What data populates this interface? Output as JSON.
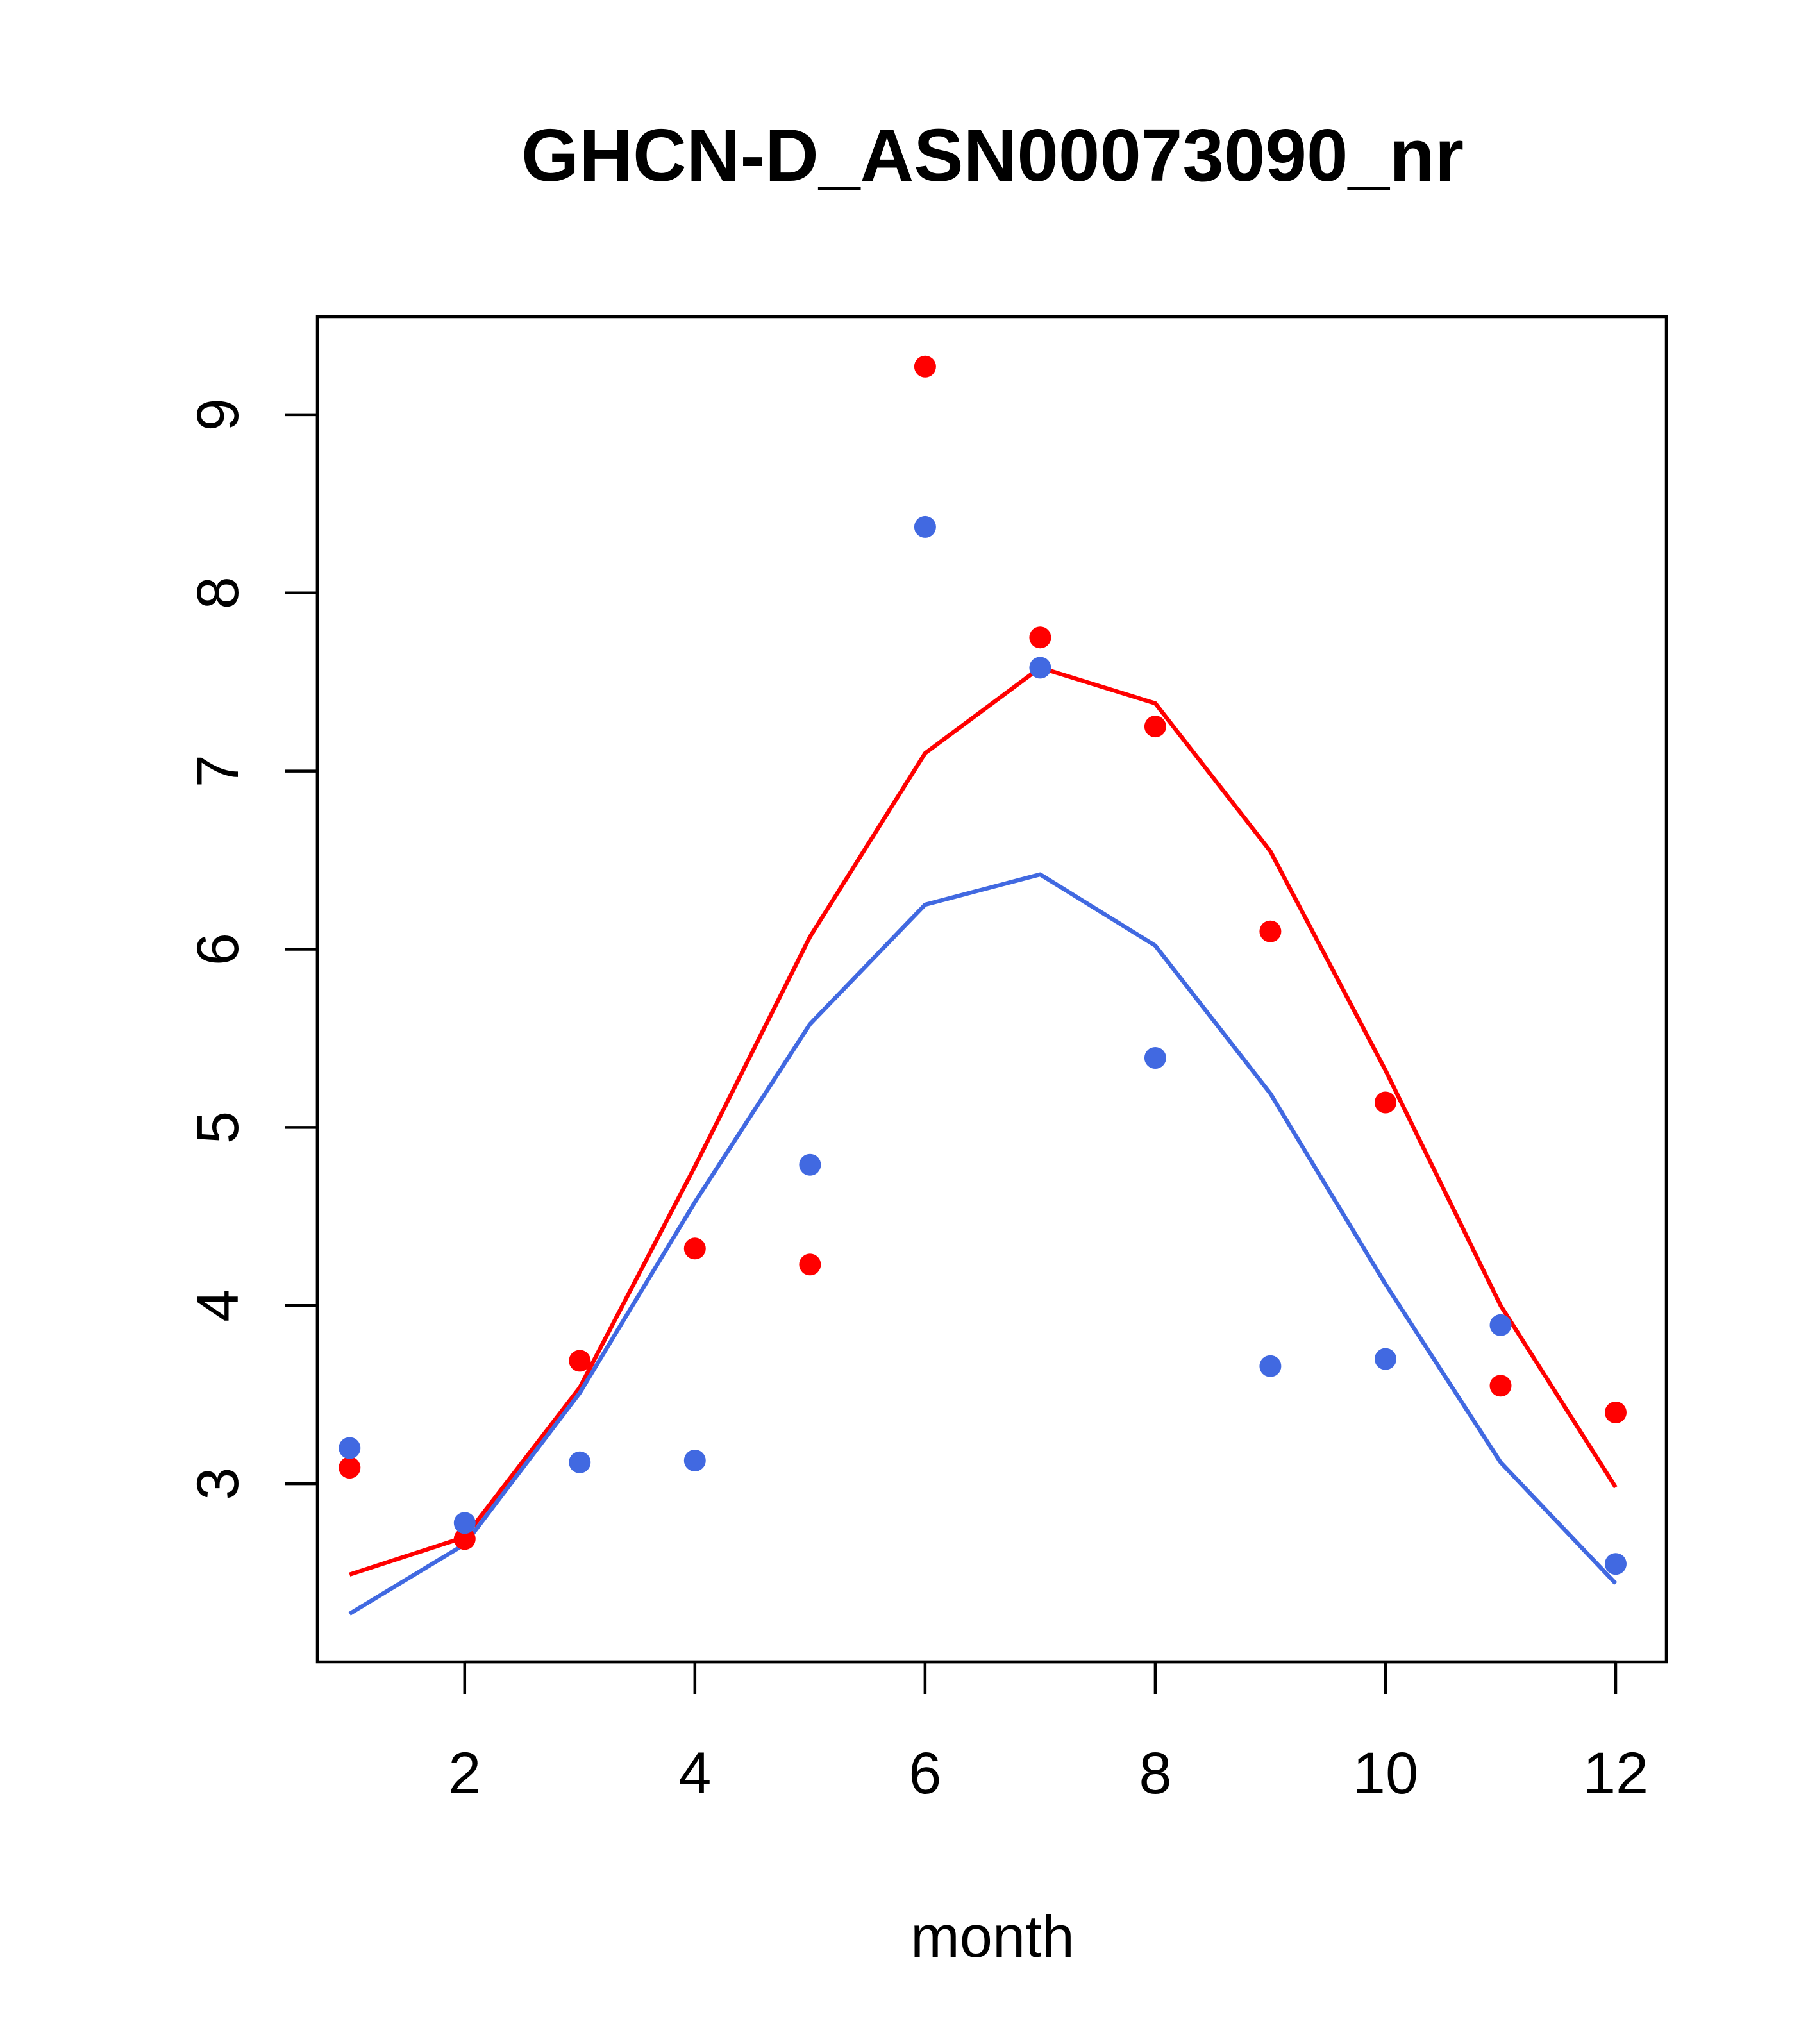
{
  "chart_data": {
    "type": "scatter",
    "title": "GHCN-D_ASN00073090_nr",
    "xlabel": "month",
    "ylabel": "",
    "xlim": [
      0.72,
      12.44
    ],
    "ylim": [
      2.0,
      9.55
    ],
    "x_ticks": [
      2,
      4,
      6,
      8,
      10,
      12
    ],
    "y_ticks": [
      3,
      4,
      5,
      6,
      7,
      8,
      9
    ],
    "grid": false,
    "legend": "none",
    "x": [
      1,
      2,
      3,
      4,
      5,
      6,
      7,
      8,
      9,
      10,
      11,
      12
    ],
    "series": [
      {
        "color": "#FF0000",
        "points": [
          3.09,
          2.69,
          3.69,
          4.32,
          4.23,
          9.27,
          7.75,
          7.25,
          6.1,
          5.14,
          3.55,
          3.4
        ],
        "line": [
          2.49,
          2.7,
          3.54,
          4.78,
          6.07,
          7.1,
          7.58,
          7.38,
          6.55,
          5.32,
          4.0,
          2.98
        ]
      },
      {
        "color": "#4169E1",
        "points": [
          3.2,
          2.78,
          3.12,
          3.13,
          4.79,
          8.37,
          7.58,
          5.39,
          3.66,
          3.7,
          3.89,
          2.55
        ],
        "line": [
          2.27,
          2.66,
          3.51,
          4.58,
          5.58,
          6.25,
          6.42,
          6.02,
          5.19,
          4.12,
          3.12,
          2.44
        ]
      }
    ]
  }
}
